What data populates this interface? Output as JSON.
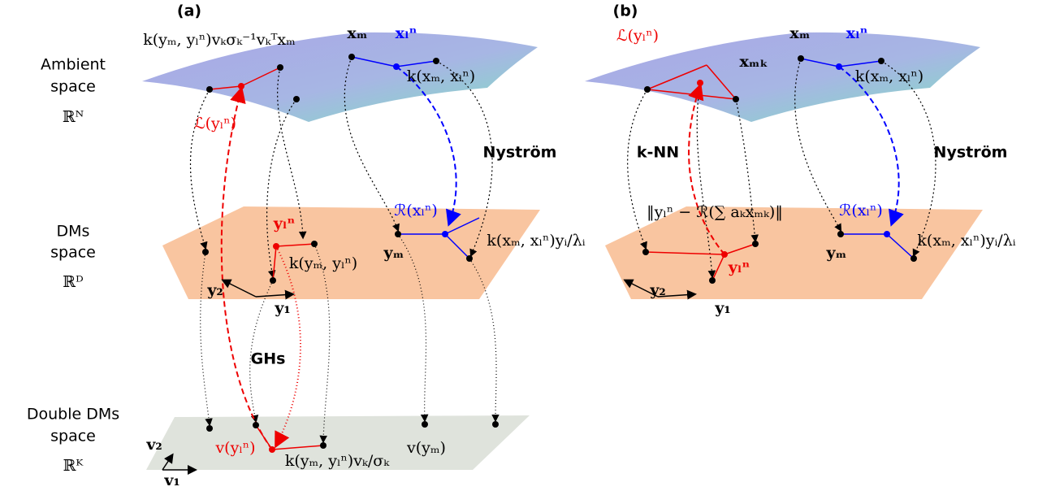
{
  "panels": [
    {
      "label": "(a)",
      "annotations": [
        "k(yₘ, yₗⁿ)vₖσₖ⁻¹vₖᵀxₘ",
        "xₘ",
        "xₗⁿ",
        "k(xₘ, xₗⁿ)",
        "ℒ(yₗⁿ)",
        "Nyström",
        "ℛ(xₗⁿ)",
        "yₗⁿ",
        "k(xₘ, xₗⁿ)yᵢ/λᵢ",
        "yₘ",
        "k(yₘ, yₗⁿ)",
        "y₂",
        "y₁",
        "GHs",
        "v₂",
        "v(yₗⁿ)",
        "k(yₘ, yₗⁿ)vₖ/σₖ",
        "v(yₘ)",
        "v₁"
      ]
    },
    {
      "label": "(b)",
      "annotations": [
        "ℒ(yₗⁿ)",
        "xₘ",
        "xₘₖ",
        "xₗⁿ",
        "k(xₘ, xₗⁿ)",
        "k-NN",
        "Nyström",
        "‖yₗⁿ − ℛ(∑ aₖxₘₖ)‖",
        "ℛ(xₗⁿ)",
        "k(xₘ, xₗⁿ)yᵢ/λᵢ",
        "yₘ",
        "yₗⁿ",
        "y₂",
        "y₁"
      ]
    }
  ],
  "spaces": [
    {
      "lines": [
        "Ambient",
        "space",
        "ℝᴺ"
      ]
    },
    {
      "lines": [
        "DMs",
        "space",
        "ℝᴰ"
      ]
    },
    {
      "lines": [
        "Double DMs",
        "space",
        "ℝᴷ"
      ]
    }
  ]
}
